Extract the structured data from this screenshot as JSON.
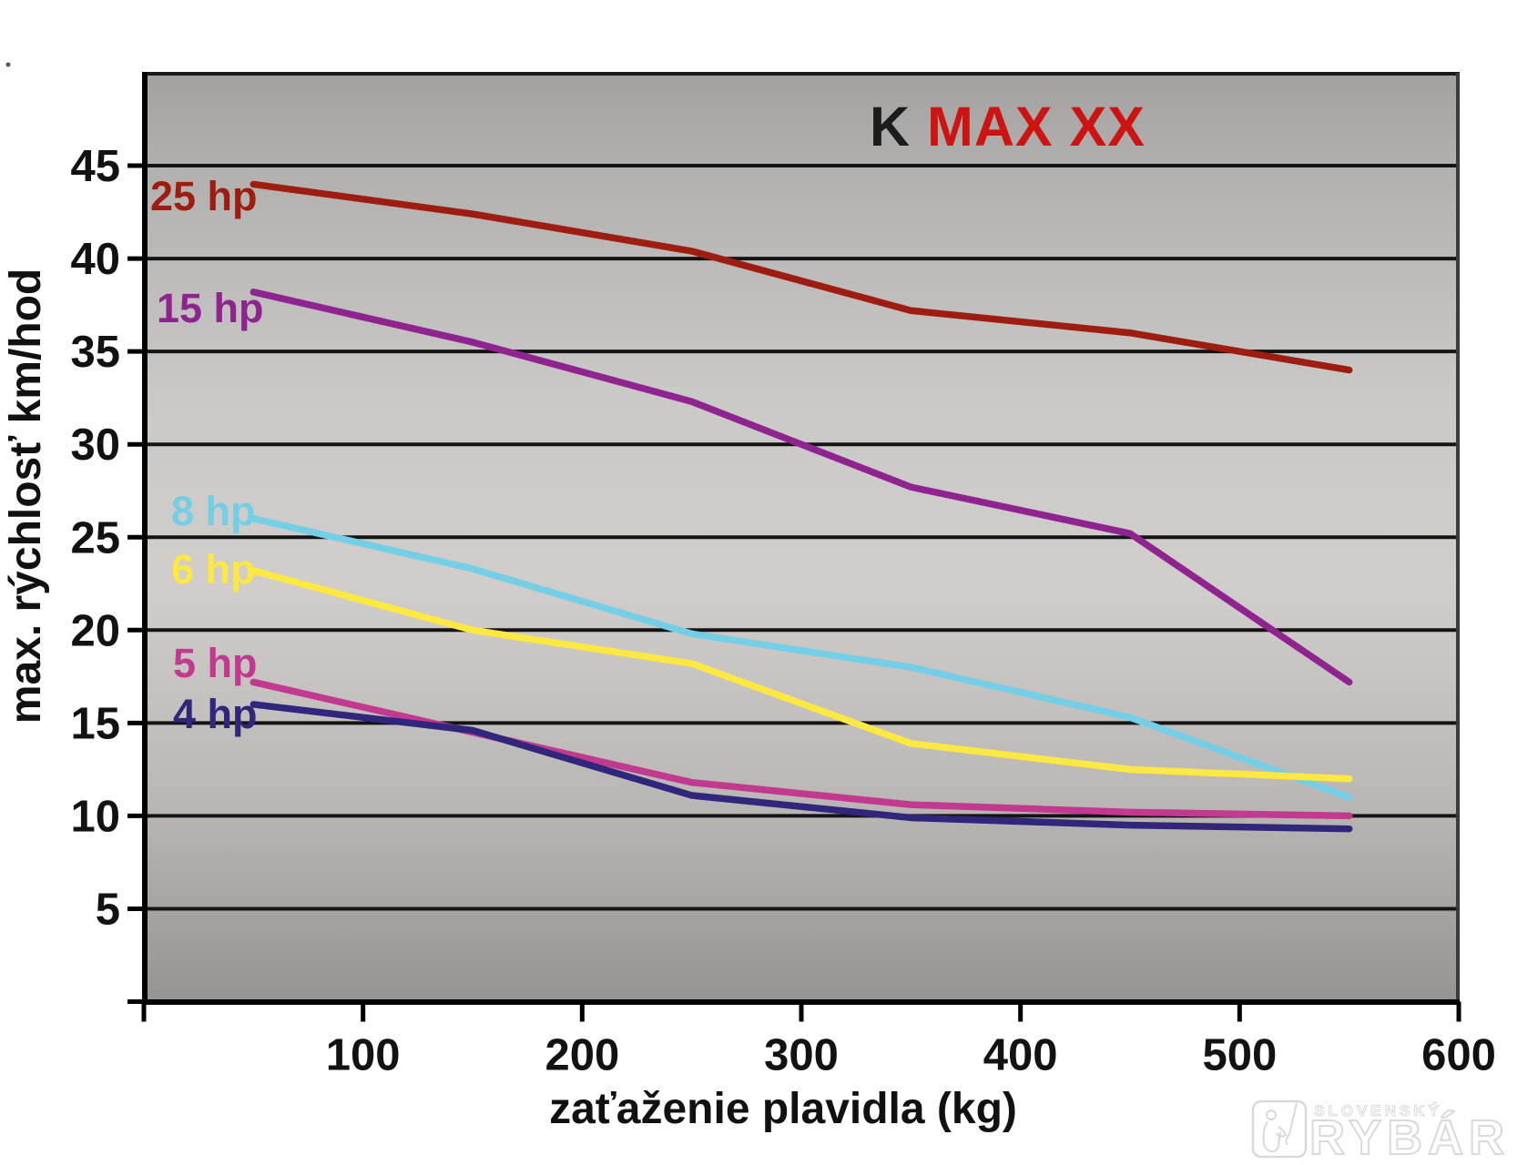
{
  "title": {
    "prefix": "K",
    "rest": " MAX XX",
    "prefix_color": "#1c1c1c",
    "rest_color": "#cc1512"
  },
  "watermark": {
    "top": "SLOVENSKÝ",
    "bottom": "RYBÁR",
    "color": "#d9d9d9"
  },
  "chart_data": {
    "type": "line",
    "title": "K MAX XX",
    "xlabel": "zaťaženie plavidla (kg)",
    "ylabel": "max. rýchlosť km/hod",
    "x_unit": "kg",
    "y_unit": "km/hod",
    "xlim": [
      0,
      600
    ],
    "ylim": [
      0,
      50
    ],
    "x_ticks": [
      100,
      200,
      300,
      400,
      500,
      600
    ],
    "y_ticks": [
      5,
      10,
      15,
      20,
      25,
      30,
      35,
      40,
      45
    ],
    "grid": "horizontal",
    "legend_position": "labels-on-lines",
    "x": [
      50,
      150,
      250,
      350,
      450,
      550
    ],
    "series": [
      {
        "name": "25 hp",
        "color": "#9e1d11",
        "values": [
          44.0,
          42.4,
          40.4,
          37.2,
          36.0,
          34.0
        ]
      },
      {
        "name": "15 hp",
        "color": "#8f2490",
        "values": [
          38.2,
          35.5,
          32.3,
          27.7,
          25.2,
          17.2
        ]
      },
      {
        "name": "8 hp",
        "color": "#74cfe6",
        "values": [
          26.0,
          23.3,
          19.8,
          18.0,
          15.3,
          11.0
        ]
      },
      {
        "name": "6 hp",
        "color": "#fbe843",
        "values": [
          23.2,
          20.0,
          18.2,
          13.9,
          12.5,
          12.0
        ]
      },
      {
        "name": "5 hp",
        "color": "#c23a90",
        "values": [
          17.2,
          14.5,
          11.8,
          10.6,
          10.2,
          10.0
        ]
      },
      {
        "name": "4 hp",
        "color": "#30267b",
        "values": [
          16.0,
          14.6,
          11.1,
          9.9,
          9.5,
          9.3
        ]
      }
    ]
  }
}
